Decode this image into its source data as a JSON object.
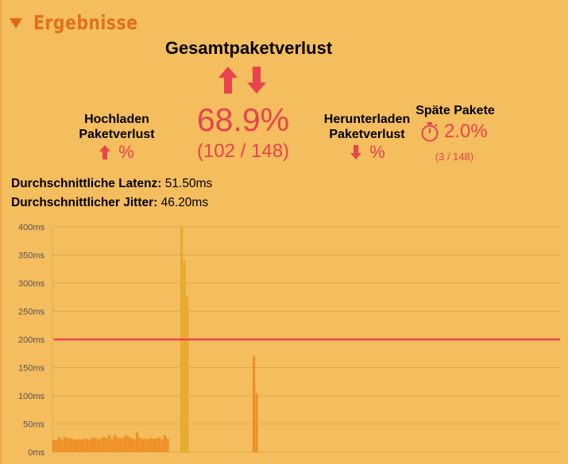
{
  "section": {
    "title": "Ergebnisse"
  },
  "total": {
    "title": "Gesamtpaketverlust",
    "percent": "68.9%",
    "count": "(102 / 148)"
  },
  "upload": {
    "label_line1": "Hochladen",
    "label_line2": "Paketverlust",
    "value": "%"
  },
  "download": {
    "label_line1": "Herunterladen",
    "label_line2": "Paketverlust",
    "value": "%"
  },
  "late": {
    "title": "Späte Pakete",
    "percent": "2.0%",
    "count": "(3 / 148)"
  },
  "stats": {
    "latency_label": "Durchschnittliche Latenz:",
    "latency_value": "51.50ms",
    "jitter_label": "Durchschnittlicher Jitter:",
    "jitter_value": "46.20ms"
  },
  "colors": {
    "background": "#f4bd5e",
    "accent_red": "#e8434e",
    "header_orange": "#e0721a",
    "bar_orange": "#ee8f25",
    "bar_gold": "#e9a92c",
    "threshold_line": "#e8434e"
  },
  "icons": {
    "upload": "arrow-up-icon",
    "download": "arrow-down-icon",
    "late": "stopwatch-icon",
    "collapse": "triangle-down-icon"
  },
  "chart_data": {
    "type": "bar",
    "ylim": [
      0,
      400
    ],
    "yticks": [
      "0ms",
      "50ms",
      "100ms",
      "150ms",
      "200ms",
      "250ms",
      "300ms",
      "350ms",
      "400ms"
    ],
    "grid": true,
    "threshold": 200,
    "x": [
      1,
      2,
      3,
      4,
      5,
      6,
      7,
      8,
      9,
      10,
      11,
      12,
      13,
      14,
      15,
      16,
      17,
      18,
      19,
      20,
      21,
      22,
      23,
      24,
      25,
      26,
      27,
      28,
      29,
      30,
      31,
      32,
      33,
      34,
      35,
      36,
      37,
      38,
      39,
      40,
      41,
      42,
      43,
      44,
      45,
      46,
      47,
      48,
      49,
      50,
      51,
      52,
      53,
      54,
      55,
      56,
      57,
      58,
      59,
      60,
      61,
      62,
      63,
      64,
      65,
      66,
      67,
      68,
      69,
      70,
      71,
      72,
      73,
      74,
      75,
      76,
      77,
      78,
      79,
      80,
      81,
      82,
      83,
      84,
      85,
      86,
      87,
      88,
      89,
      90,
      91,
      92,
      93,
      94,
      95,
      96,
      97,
      98,
      99,
      100,
      101,
      102,
      103,
      104,
      105,
      106,
      107,
      108,
      109,
      110,
      111,
      112,
      113,
      114,
      115,
      116,
      117,
      118,
      119,
      120,
      121,
      122,
      123,
      124,
      125,
      126,
      127,
      128,
      129,
      130,
      131,
      132,
      133,
      134,
      135,
      136,
      137,
      138,
      139,
      140,
      141,
      142,
      143,
      144,
      145,
      146,
      147,
      148
    ],
    "series": [
      {
        "values": [
          22,
          22,
          26,
          22,
          27,
          25,
          25,
          23,
          22,
          23,
          22,
          24,
          23,
          22,
          26,
          25,
          23,
          24,
          27,
          25,
          30,
          23,
          30,
          26,
          24,
          26,
          30,
          27,
          25,
          23,
          36,
          25,
          23,
          24,
          23,
          25,
          24,
          24,
          26,
          23,
          30,
          24,
          0,
          0,
          0,
          0,
          400,
          340,
          276,
          0,
          0,
          0,
          0,
          0,
          0,
          0,
          0,
          0,
          0,
          0,
          0,
          0,
          0,
          0,
          0,
          0,
          0,
          0,
          0,
          0,
          0,
          0,
          170,
          104,
          0,
          0,
          0,
          0,
          0,
          0,
          0,
          0,
          0,
          0,
          0,
          0,
          0,
          0,
          0,
          0,
          0,
          0,
          0,
          0,
          0,
          0,
          0,
          0,
          0,
          0,
          0,
          0,
          0,
          0,
          0,
          0,
          0,
          0,
          0,
          0,
          0,
          0,
          0,
          0,
          0,
          0,
          0,
          0,
          0,
          0,
          0,
          0,
          0,
          0,
          0,
          0,
          0,
          0,
          0,
          0,
          0,
          0,
          0,
          0,
          0,
          0,
          0,
          0,
          0,
          0,
          0,
          0,
          0,
          0,
          0,
          0,
          0,
          0
        ]
      }
    ]
  }
}
